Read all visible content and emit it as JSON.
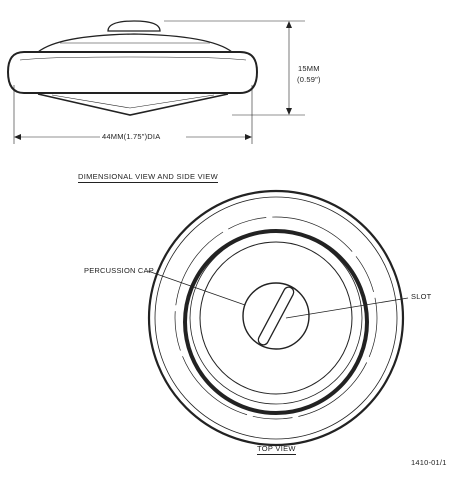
{
  "side_view": {
    "height_mm": "15MM",
    "height_in": "(0.59\")",
    "diameter": "44MM(1.75\")DIA",
    "caption": "DIMENSIONAL VIEW AND SIDE VIEW"
  },
  "top_view": {
    "percussion_cap_label": "PERCUSSION CAP",
    "slot_label": "SLOT",
    "caption": "TOP VIEW"
  },
  "figure_id": "1410-01/1",
  "colors": {
    "ink": "#222222",
    "paper": "#ffffff"
  }
}
